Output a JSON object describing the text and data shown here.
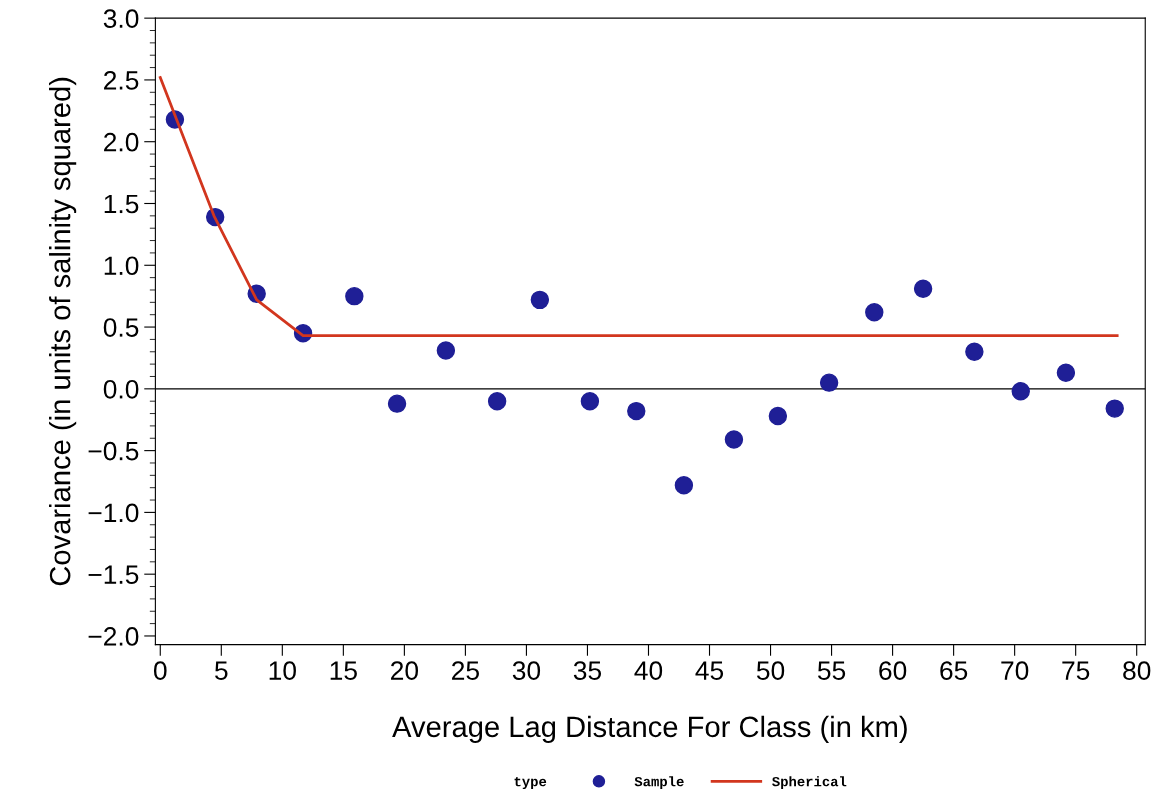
{
  "chart_data": {
    "type": "scatter",
    "xlabel": "Average Lag Distance For Class (in km)",
    "ylabel": "Covariance (in units of salinity squared)",
    "legend_title": "type",
    "series": [
      {
        "name": "Sample",
        "color": "#1f1f96",
        "marker": "circle",
        "x": [
          1.2,
          4.5,
          7.9,
          11.7,
          15.9,
          19.4,
          23.4,
          27.6,
          31.1,
          35.2,
          39.0,
          42.9,
          47.0,
          50.6,
          54.8,
          58.5,
          62.5,
          66.7,
          70.5,
          74.2,
          78.2
        ],
        "values": [
          2.18,
          1.39,
          0.77,
          0.45,
          0.75,
          -0.12,
          0.31,
          -0.1,
          0.72,
          -0.1,
          -0.18,
          -0.78,
          -0.41,
          -0.22,
          0.05,
          0.62,
          0.81,
          0.3,
          -0.02,
          0.13,
          -0.16
        ]
      },
      {
        "name": "Spherical",
        "type": "line",
        "color": "#d2361e",
        "line_style": "solid",
        "x": [
          0.0,
          4.4,
          7.9,
          11.7,
          78.4
        ],
        "values": [
          2.52,
          1.4,
          0.72,
          0.43,
          0.43
        ]
      }
    ],
    "ref_lines": [
      {
        "axis": "y",
        "value": 0,
        "color": "#000000"
      }
    ],
    "xlim": [
      -0.4,
      80.7
    ],
    "ylim": [
      -2.07,
      3.0
    ],
    "xticks": [
      0,
      5,
      10,
      15,
      20,
      25,
      30,
      35,
      40,
      45,
      50,
      55,
      60,
      65,
      70,
      75,
      80
    ],
    "yticks": [
      {
        "value": -2.0,
        "label": "−2.0"
      },
      {
        "value": -1.5,
        "label": "−1.5"
      },
      {
        "value": -1.0,
        "label": "−1.0"
      },
      {
        "value": -0.5,
        "label": "−0.5"
      },
      {
        "value": 0.0,
        "label": "0.0"
      },
      {
        "value": 0.5,
        "label": "0.5"
      },
      {
        "value": 1.0,
        "label": "1.0"
      },
      {
        "value": 1.5,
        "label": "1.5"
      },
      {
        "value": 2.0,
        "label": "2.0"
      },
      {
        "value": 2.5,
        "label": "2.5"
      },
      {
        "value": 3.0,
        "label": "3.0"
      }
    ],
    "grid": false,
    "legend": "bottom"
  }
}
